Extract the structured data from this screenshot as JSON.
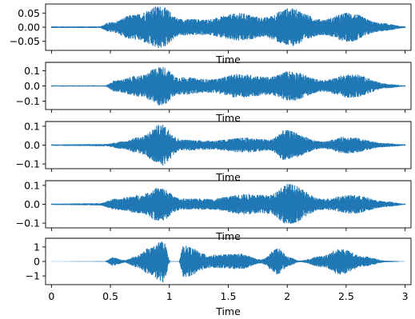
{
  "chart_data": [
    {
      "type": "line",
      "subplot": 1,
      "xlabel": "Time",
      "xlim": [
        -0.05,
        3.05
      ],
      "ylim": [
        -0.082,
        0.082
      ],
      "yticks": [
        -0.05,
        0.0,
        0.05
      ],
      "ytick_labels": [
        "−0.05",
        "0.00",
        "0.05"
      ],
      "xticks": [
        0,
        0.5,
        1,
        1.5,
        2,
        2.5,
        3
      ],
      "xtick_labels_visible": false,
      "color": "#1f77b4",
      "envelope_peaks": [
        {
          "t": 0.03,
          "amp": 0.003
        },
        {
          "t": 0.4,
          "amp": 0.003
        },
        {
          "t": 0.5,
          "amp": 0.018
        },
        {
          "t": 0.7,
          "amp": 0.045
        },
        {
          "t": 0.92,
          "amp": 0.076
        },
        {
          "t": 1.1,
          "amp": 0.03
        },
        {
          "t": 1.3,
          "amp": 0.028
        },
        {
          "t": 1.6,
          "amp": 0.05
        },
        {
          "t": 1.8,
          "amp": 0.035
        },
        {
          "t": 2.02,
          "amp": 0.068
        },
        {
          "t": 2.3,
          "amp": 0.028
        },
        {
          "t": 2.52,
          "amp": 0.052
        },
        {
          "t": 2.8,
          "amp": 0.015
        },
        {
          "t": 3.0,
          "amp": 0.003
        }
      ]
    },
    {
      "type": "line",
      "subplot": 2,
      "xlabel": "Time",
      "xlim": [
        -0.05,
        3.05
      ],
      "ylim": [
        -0.155,
        0.155
      ],
      "yticks": [
        -0.1,
        0.0,
        0.1
      ],
      "ytick_labels": [
        "−0.1",
        "0.0",
        "0.1"
      ],
      "xticks": [
        0,
        0.5,
        1,
        1.5,
        2,
        2.5,
        3
      ],
      "xtick_labels_visible": false,
      "color": "#1f77b4",
      "envelope_peaks": [
        {
          "t": 0.03,
          "amp": 0.004
        },
        {
          "t": 0.45,
          "amp": 0.004
        },
        {
          "t": 0.55,
          "amp": 0.04
        },
        {
          "t": 0.75,
          "amp": 0.07
        },
        {
          "t": 0.93,
          "amp": 0.13
        },
        {
          "t": 1.08,
          "amp": 0.06
        },
        {
          "t": 1.35,
          "amp": 0.045
        },
        {
          "t": 1.6,
          "amp": 0.08
        },
        {
          "t": 1.85,
          "amp": 0.06
        },
        {
          "t": 2.02,
          "amp": 0.1
        },
        {
          "t": 2.3,
          "amp": 0.04
        },
        {
          "t": 2.55,
          "amp": 0.08
        },
        {
          "t": 2.85,
          "amp": 0.015
        },
        {
          "t": 3.0,
          "amp": 0.004
        }
      ]
    },
    {
      "type": "line",
      "subplot": 3,
      "xlabel": "Time",
      "xlim": [
        -0.05,
        3.05
      ],
      "ylim": [
        -0.125,
        0.125
      ],
      "yticks": [
        -0.1,
        0.0,
        0.1
      ],
      "ytick_labels": [
        "−0.1",
        "0.0",
        "0.1"
      ],
      "xticks": [
        0,
        0.5,
        1,
        1.5,
        2,
        2.5,
        3
      ],
      "xtick_labels_visible": false,
      "color": "#1f77b4",
      "envelope_peaks": [
        {
          "t": 0.03,
          "amp": 0.004
        },
        {
          "t": 0.45,
          "amp": 0.006
        },
        {
          "t": 0.6,
          "amp": 0.02
        },
        {
          "t": 0.75,
          "amp": 0.045
        },
        {
          "t": 0.93,
          "amp": 0.11
        },
        {
          "t": 1.1,
          "amp": 0.03
        },
        {
          "t": 1.35,
          "amp": 0.025
        },
        {
          "t": 1.65,
          "amp": 0.04
        },
        {
          "t": 1.85,
          "amp": 0.03
        },
        {
          "t": 1.98,
          "amp": 0.08
        },
        {
          "t": 2.3,
          "amp": 0.02
        },
        {
          "t": 2.5,
          "amp": 0.045
        },
        {
          "t": 2.85,
          "amp": 0.01
        },
        {
          "t": 3.0,
          "amp": 0.004
        }
      ]
    },
    {
      "type": "line",
      "subplot": 4,
      "xlabel": "Time",
      "xlim": [
        -0.05,
        3.05
      ],
      "ylim": [
        -0.125,
        0.125
      ],
      "yticks": [
        -0.1,
        0.0,
        0.1
      ],
      "ytick_labels": [
        "−0.1",
        "0.0",
        "0.1"
      ],
      "xticks": [
        0,
        0.5,
        1,
        1.5,
        2,
        2.5,
        3
      ],
      "xtick_labels_visible": false,
      "color": "#1f77b4",
      "envelope_peaks": [
        {
          "t": 0.03,
          "amp": 0.004
        },
        {
          "t": 0.4,
          "amp": 0.006
        },
        {
          "t": 0.55,
          "amp": 0.03
        },
        {
          "t": 0.75,
          "amp": 0.05
        },
        {
          "t": 0.92,
          "amp": 0.09
        },
        {
          "t": 1.1,
          "amp": 0.03
        },
        {
          "t": 1.35,
          "amp": 0.03
        },
        {
          "t": 1.65,
          "amp": 0.055
        },
        {
          "t": 1.85,
          "amp": 0.05
        },
        {
          "t": 2.0,
          "amp": 0.11
        },
        {
          "t": 2.3,
          "amp": 0.03
        },
        {
          "t": 2.55,
          "amp": 0.05
        },
        {
          "t": 2.85,
          "amp": 0.015
        },
        {
          "t": 3.0,
          "amp": 0.004
        }
      ]
    },
    {
      "type": "line",
      "subplot": 5,
      "xlabel": "Time",
      "xlim": [
        -0.05,
        3.05
      ],
      "ylim": [
        -1.6,
        1.6
      ],
      "yticks": [
        -1,
        0,
        1
      ],
      "ytick_labels": [
        "−1",
        "0",
        "1"
      ],
      "xticks": [
        0,
        0.5,
        1,
        1.5,
        2,
        2.5,
        3
      ],
      "xtick_labels": [
        "0",
        "0.5",
        "1",
        "1.5",
        "2",
        "2.5",
        "3"
      ],
      "xtick_labels_visible": true,
      "color": "#1f77b4",
      "envelope_peaks": [
        {
          "t": 0.03,
          "amp": 0.01
        },
        {
          "t": 0.45,
          "amp": 0.02
        },
        {
          "t": 0.52,
          "amp": 0.3
        },
        {
          "t": 0.62,
          "amp": 0.1
        },
        {
          "t": 0.72,
          "amp": 0.4
        },
        {
          "t": 0.82,
          "amp": 0.9
        },
        {
          "t": 0.95,
          "amp": 1.45
        },
        {
          "t": 1.01,
          "amp": 0.02
        },
        {
          "t": 1.08,
          "amp": 0.02
        },
        {
          "t": 1.12,
          "amp": 1.1
        },
        {
          "t": 1.35,
          "amp": 0.45
        },
        {
          "t": 1.6,
          "amp": 0.55
        },
        {
          "t": 1.78,
          "amp": 0.15
        },
        {
          "t": 1.92,
          "amp": 0.9
        },
        {
          "t": 2.02,
          "amp": 0.3
        },
        {
          "t": 2.1,
          "amp": 0.06
        },
        {
          "t": 2.3,
          "amp": 0.4
        },
        {
          "t": 2.45,
          "amp": 0.9
        },
        {
          "t": 2.65,
          "amp": 0.35
        },
        {
          "t": 2.85,
          "amp": 0.05
        },
        {
          "t": 3.0,
          "amp": 0.01
        }
      ]
    }
  ]
}
